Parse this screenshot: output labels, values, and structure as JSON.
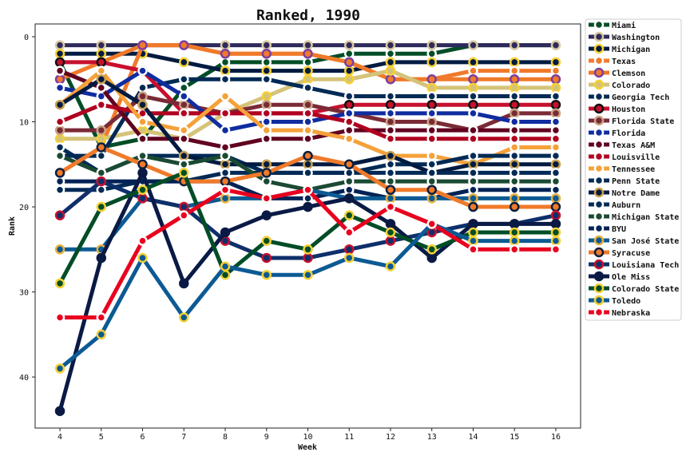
{
  "chart_data": {
    "type": "line",
    "title": "Ranked, 1990",
    "xlabel": "Week",
    "ylabel": "Rank",
    "x": [
      4,
      5,
      6,
      7,
      8,
      9,
      10,
      11,
      12,
      13,
      14,
      15,
      16
    ],
    "xlim": [
      3.4,
      16.6
    ],
    "ylim": [
      46,
      -1.5
    ],
    "yticks": [
      0,
      10,
      20,
      30,
      40
    ],
    "y_inverted": true,
    "grid": false,
    "legend_position": "outside-right",
    "series": [
      {
        "name": "Miami",
        "primary": "#004d26",
        "secondary": "#ffffff",
        "values": [
          3,
          13,
          12,
          6,
          3,
          3,
          3,
          2,
          2,
          2,
          1,
          1,
          1
        ]
      },
      {
        "name": "Washington",
        "primary": "#2e2a5c",
        "secondary": "#d9c8a0",
        "values": [
          1,
          1,
          1,
          1,
          1,
          1,
          1,
          1,
          1,
          1,
          1,
          1,
          1
        ]
      },
      {
        "name": "Michigan",
        "primary": "#001a40",
        "secondary": "#f5d033",
        "values": [
          2,
          2,
          2,
          3,
          4,
          4,
          4,
          4,
          3,
          3,
          3,
          3,
          3
        ]
      },
      {
        "name": "Texas",
        "primary": "#f07a2a",
        "secondary": "#ffffff",
        "values": [
          16,
          13,
          1,
          1,
          2,
          2,
          2,
          3,
          5,
          5,
          4,
          4,
          4
        ]
      },
      {
        "name": "Clemson",
        "primary": "#f07a2a",
        "secondary": "#7b3fa0",
        "values": [
          5,
          3,
          1,
          1,
          2,
          2,
          2,
          3,
          5,
          5,
          5,
          5,
          5
        ]
      },
      {
        "name": "Colorado",
        "primary": "#d4c37a",
        "secondary": "#f5d033",
        "values": [
          12,
          12,
          11,
          12,
          9,
          7,
          5,
          5,
          4,
          6,
          6,
          6,
          6
        ]
      },
      {
        "name": "Georgia Tech",
        "primary": "#002a55",
        "secondary": "#ffffff",
        "values": [
          14,
          14,
          6,
          5,
          5,
          5,
          6,
          7,
          7,
          7,
          7,
          7,
          7
        ]
      },
      {
        "name": "Houston",
        "primary": "#c8102e",
        "secondary": "#111111",
        "values": [
          3,
          3,
          4,
          9,
          9,
          9,
          9,
          8,
          8,
          8,
          8,
          8,
          8
        ]
      },
      {
        "name": "Florida State",
        "primary": "#7a2a36",
        "secondary": "#c9a585",
        "values": [
          11,
          11,
          7,
          8,
          9,
          8,
          8,
          9,
          10,
          10,
          11,
          9,
          9
        ]
      },
      {
        "name": "Florida",
        "primary": "#0f2ca0",
        "secondary": "#ffffff",
        "values": [
          6,
          7,
          4,
          7,
          11,
          10,
          10,
          9,
          9,
          9,
          9,
          10,
          10
        ]
      },
      {
        "name": "Texas A&M",
        "primary": "#600020",
        "secondary": "#ffffff",
        "values": [
          4,
          6,
          12,
          12,
          13,
          12,
          12,
          11,
          11,
          11,
          11,
          11,
          11
        ]
      },
      {
        "name": "Louisville",
        "primary": "#b00020",
        "secondary": "#ffffff",
        "values": [
          10,
          8,
          9,
          9,
          9,
          9,
          9,
          10,
          12,
          12,
          12,
          12,
          12
        ]
      },
      {
        "name": "Tennessee",
        "primary": "#f5a13a",
        "secondary": "#ffffff",
        "values": [
          8,
          4,
          10,
          11,
          7,
          11,
          11,
          12,
          14,
          14,
          15,
          13,
          13
        ]
      },
      {
        "name": "Penn State",
        "primary": "#002a55",
        "secondary": "#ffffff",
        "values": [
          13,
          16,
          14,
          14,
          14,
          16,
          16,
          16,
          15,
          15,
          14,
          14,
          14
        ]
      },
      {
        "name": "Notre Dame",
        "primary": "#001a40",
        "secondary": "#c9a050",
        "values": [
          8,
          5,
          8,
          14,
          15,
          15,
          15,
          15,
          14,
          16,
          15,
          15,
          15
        ]
      },
      {
        "name": "Auburn",
        "primary": "#002a55",
        "secondary": "#ffffff",
        "values": [
          18,
          18,
          17,
          17,
          16,
          16,
          16,
          16,
          16,
          16,
          16,
          16,
          16
        ]
      },
      {
        "name": "Michigan State",
        "primary": "#1a4a33",
        "secondary": "#ffffff",
        "values": [
          14,
          16,
          14,
          15,
          14,
          17,
          18,
          17,
          17,
          17,
          17,
          17,
          17
        ]
      },
      {
        "name": "BYU",
        "primary": "#002255",
        "secondary": "#ffffff",
        "values": [
          17,
          17,
          17,
          17,
          17,
          19,
          19,
          18,
          19,
          19,
          18,
          18,
          18
        ]
      },
      {
        "name": "San José State",
        "primary": "#0c5a94",
        "secondary": "#e6b040",
        "values": [
          25,
          25,
          19,
          20,
          19,
          19,
          18,
          19,
          19,
          19,
          19,
          19,
          19
        ]
      },
      {
        "name": "Syracuse",
        "primary": "#f07a2a",
        "secondary": "#0b1f40",
        "values": [
          16,
          13,
          15,
          17,
          17,
          16,
          14,
          15,
          18,
          18,
          20,
          20,
          20
        ]
      },
      {
        "name": "Louisiana Tech",
        "primary": "#0e2f6a",
        "secondary": "#c8102e",
        "values": [
          21,
          17,
          19,
          20,
          24,
          26,
          26,
          25,
          24,
          23,
          22,
          22,
          21
        ]
      },
      {
        "name": "Ole Miss",
        "primary": "#0a1a45",
        "secondary": "#0a1a45",
        "values": [
          44,
          26,
          16,
          29,
          23,
          21,
          20,
          19,
          22,
          26,
          22,
          22,
          22
        ]
      },
      {
        "name": "Colorado State",
        "primary": "#004d26",
        "secondary": "#f5d033",
        "values": [
          29,
          20,
          18,
          16,
          28,
          24,
          25,
          21,
          23,
          25,
          23,
          23,
          23
        ]
      },
      {
        "name": "Toledo",
        "primary": "#0c5a94",
        "secondary": "#f5d033",
        "values": [
          39,
          35,
          26,
          33,
          27,
          28,
          28,
          26,
          27,
          22,
          24,
          24,
          24
        ]
      },
      {
        "name": "Nebraska",
        "primary": "#e8001e",
        "secondary": "#ffffff",
        "values": [
          33,
          33,
          24,
          21,
          18,
          19,
          18,
          23,
          20,
          22,
          25,
          25,
          25
        ]
      }
    ]
  }
}
